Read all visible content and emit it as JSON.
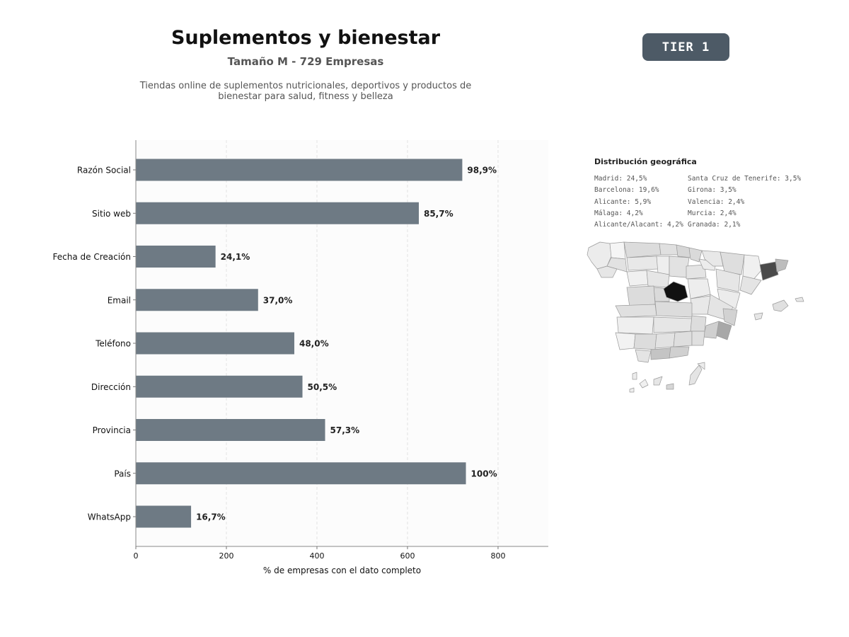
{
  "header": {
    "title": "Suplementos y bienestar",
    "subtitle": "Tamaño M - 729 Empresas",
    "description_lines": [
      "Tiendas online de suplementos nutricionales, deportivos y productos de",
      "bienestar para salud, fitness y belleza"
    ],
    "tier": "TIER 1"
  },
  "chart_data": {
    "type": "bar",
    "orientation": "horizontal",
    "categories": [
      "Razón Social",
      "Sitio web",
      "Fecha de Creación",
      "Email",
      "Teléfono",
      "Dirección",
      "Provincia",
      "País",
      "WhatsApp"
    ],
    "values": [
      721,
      625,
      176,
      270,
      350,
      368,
      418,
      729,
      122
    ],
    "data_labels": [
      "98,9%",
      "85,7%",
      "24,1%",
      "37,0%",
      "48,0%",
      "50,5%",
      "57,3%",
      "100%",
      "16,7%"
    ],
    "xlabel": "% de empresas con el dato completo",
    "ylabel": "",
    "xlim": [
      0,
      911
    ],
    "xticks": [
      0,
      200,
      400,
      600,
      800
    ],
    "grid": true,
    "bar_color": "#6e7a84"
  },
  "geo": {
    "title": "Distribución geográfica",
    "left_column": [
      "Madrid: 24,5%",
      "Barcelona: 19,6%",
      "Alicante: 5,9%",
      "Málaga: 4,2%",
      "Alicante/Alacant: 4,2%"
    ],
    "right_column": [
      "Santa Cruz de Tenerife: 3,5%",
      "Girona: 3,5%",
      "Valencia: 2,4%",
      "Murcia: 2,4%",
      "Granada: 2,1%"
    ]
  }
}
